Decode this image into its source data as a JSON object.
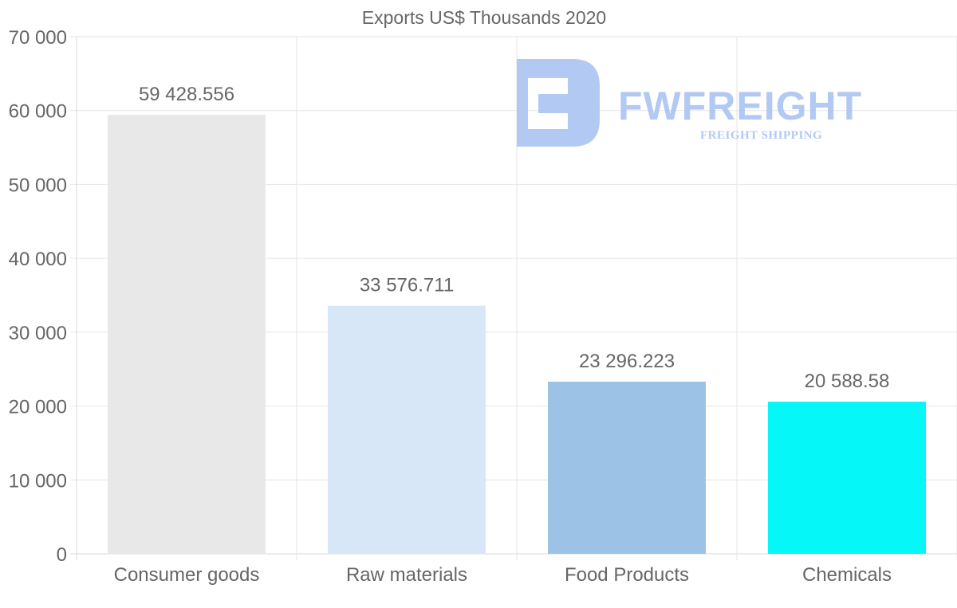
{
  "chart_data": {
    "type": "bar",
    "title": "Exports US$ Thousands 2020",
    "categories": [
      "Consumer goods",
      "Raw materials",
      "Food Products",
      "Chemicals"
    ],
    "values": [
      59428.556,
      33576.711,
      23296.223,
      20588.58
    ],
    "value_labels": [
      "59 428.556",
      "33 576.711",
      "23 296.223",
      "20 588.58"
    ],
    "bar_colors": [
      "#e8e8e8",
      "#d8e7f8",
      "#9cc3e6",
      "#05f7f7"
    ],
    "ylim": [
      0,
      70000
    ],
    "yticks": [
      0,
      10000,
      20000,
      30000,
      40000,
      50000,
      60000,
      70000
    ],
    "ytick_labels": [
      "0",
      "10 000",
      "20 000",
      "30 000",
      "40 000",
      "50 000",
      "60 000",
      "70 000"
    ],
    "xlabel": "",
    "ylabel": "",
    "grid": true
  },
  "watermark": {
    "brand": "FWFREIGHT",
    "tagline": "FREIGHT SHIPPING",
    "color": "#aac4f2"
  }
}
